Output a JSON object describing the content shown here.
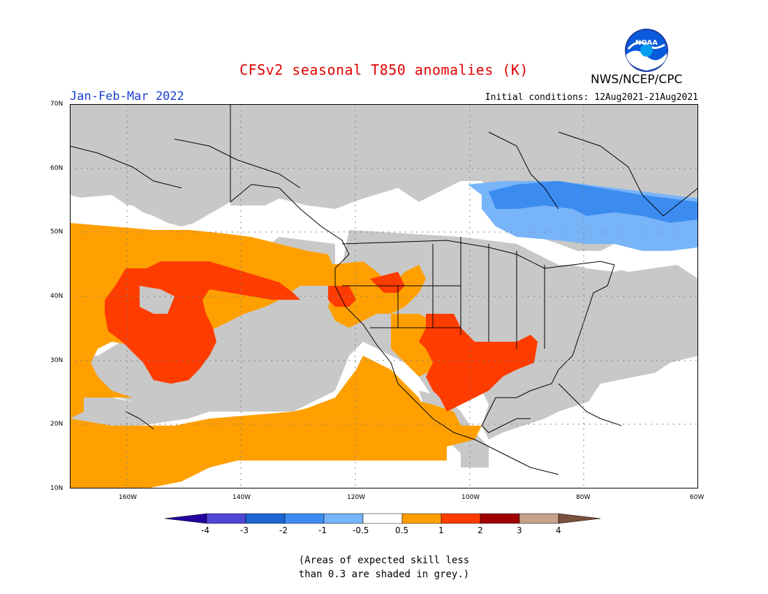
{
  "header": {
    "title": "CFSv2 seasonal T850 anomalies (K)",
    "period": "Jan-Feb-Mar 2022",
    "initial_conditions": "Initial conditions: 12Aug2021-21Aug2021",
    "agency": "NWS/NCEP/CPC",
    "logo_text": "NOAA"
  },
  "map": {
    "lat_labels": [
      "70N",
      "60N",
      "50N",
      "40N",
      "30N",
      "20N",
      "10N"
    ],
    "lon_labels": [
      "160W",
      "140W",
      "120W",
      "100W",
      "80W",
      "60W"
    ],
    "lon_range": [
      -170,
      -60
    ],
    "lat_range": [
      10,
      70
    ],
    "colors": {
      "skill_grey": "#c8c8c8",
      "warm_05_1": "#ffa000",
      "warm_1_2": "#ff3c00",
      "cool_05_1": "#78b4f8",
      "cool_1_2": "#3c8cf0",
      "coast": "#000000"
    }
  },
  "colorbar": {
    "tick_labels": [
      "-4",
      "-3",
      "-2",
      "-1",
      "-0.5",
      "0.5",
      "1",
      "2",
      "3",
      "4"
    ],
    "colors": [
      "#2400a0",
      "#5046d6",
      "#1e64d2",
      "#3c8cf0",
      "#78b4f8",
      "#ffffff",
      "#ffa000",
      "#ff3c00",
      "#a00000",
      "#c8a08c",
      "#78503c"
    ]
  },
  "note": {
    "line1": "(Areas of expected skill less",
    "line2": "than 0.3 are shaded in grey.)"
  }
}
